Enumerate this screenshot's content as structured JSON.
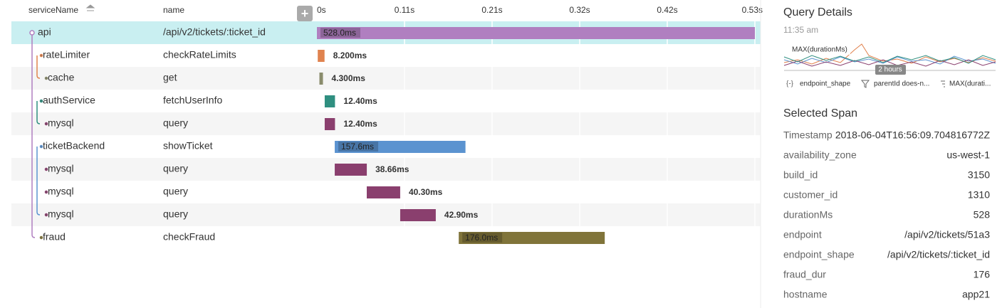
{
  "header": {
    "columns": [
      "serviceName",
      "name"
    ],
    "add_button": "+"
  },
  "timeline": {
    "xlim": [
      0,
      0.528
    ],
    "xticks": [
      {
        "value": 0,
        "label": "0s"
      },
      {
        "value": 0.1056,
        "label": "0.11s"
      },
      {
        "value": 0.2112,
        "label": "0.21s"
      },
      {
        "value": 0.3168,
        "label": "0.32s"
      },
      {
        "value": 0.4224,
        "label": "0.42s"
      },
      {
        "value": 0.528,
        "label": "0.53s"
      }
    ]
  },
  "spans": [
    {
      "service": "api",
      "name": "/api/v2/tickets/:ticket_id",
      "depth": 0,
      "start": 0,
      "duration": 0.528,
      "duration_label": "528.0ms",
      "color": "#b07fc0"
    },
    {
      "service": "rateLimiter",
      "name": "checkRateLimits",
      "depth": 1,
      "start": 0.001,
      "duration": 0.0082,
      "duration_label": "8.200ms",
      "color": "#e0834f"
    },
    {
      "service": "cache",
      "name": "get",
      "depth": 2,
      "start": 0.003,
      "duration": 0.0043,
      "duration_label": "4.300ms",
      "color": "#8a8c6c"
    },
    {
      "service": "authService",
      "name": "fetchUserInfo",
      "depth": 1,
      "start": 0.0094,
      "duration": 0.0124,
      "duration_label": "12.40ms",
      "color": "#2f8f80"
    },
    {
      "service": "mysql",
      "name": "query",
      "depth": 2,
      "start": 0.0094,
      "duration": 0.0124,
      "duration_label": "12.40ms",
      "color": "#8a3f6e"
    },
    {
      "service": "ticketBackend",
      "name": "showTicket",
      "depth": 1,
      "start": 0.0215,
      "duration": 0.1576,
      "duration_label": "157.6ms",
      "color": "#5b93d0"
    },
    {
      "service": "mysql",
      "name": "query",
      "depth": 2,
      "start": 0.0215,
      "duration": 0.03866,
      "duration_label": "38.66ms",
      "color": "#8a3f6e"
    },
    {
      "service": "mysql",
      "name": "query",
      "depth": 2,
      "start": 0.0601,
      "duration": 0.0403,
      "duration_label": "40.30ms",
      "color": "#8a3f6e"
    },
    {
      "service": "mysql",
      "name": "query",
      "depth": 2,
      "start": 0.1004,
      "duration": 0.0429,
      "duration_label": "42.90ms",
      "color": "#8a3f6e"
    },
    {
      "service": "fraud",
      "name": "checkFraud",
      "depth": 1,
      "start": 0.171,
      "duration": 0.176,
      "duration_label": "176.0ms",
      "color": "#80743a"
    }
  ],
  "sidebar": {
    "title": "Query Details",
    "time": "11:35 am",
    "chart_label": "MAX(durationMs)",
    "range_label": "2 hours",
    "chips": [
      "endpoint_shape",
      "parentId does-n...",
      "MAX(durati..."
    ],
    "selected_title": "Selected Span",
    "fields": [
      {
        "key": "Timestamp",
        "value": "2018-06-04T16:56:09.704816772Z"
      },
      {
        "key": "availability_zone",
        "value": "us-west-1"
      },
      {
        "key": "build_id",
        "value": "3150"
      },
      {
        "key": "customer_id",
        "value": "1310"
      },
      {
        "key": "durationMs",
        "value": "528"
      },
      {
        "key": "endpoint",
        "value": "/api/v2/tickets/51a3"
      },
      {
        "key": "endpoint_shape",
        "value": "/api/v2/tickets/:ticket_id"
      },
      {
        "key": "fraud_dur",
        "value": "176"
      },
      {
        "key": "hostname",
        "value": "app21"
      }
    ]
  }
}
